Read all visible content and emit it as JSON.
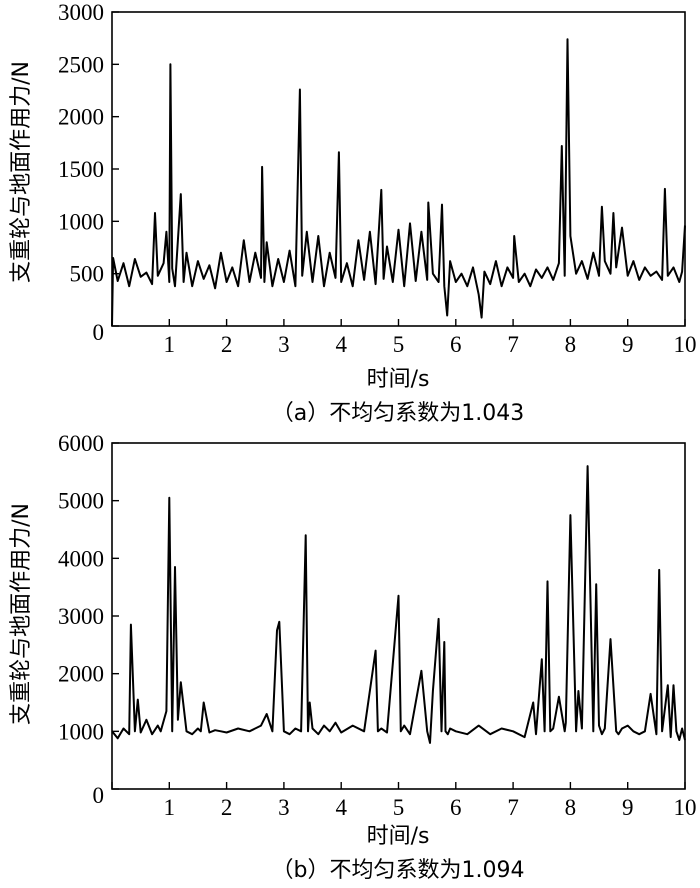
{
  "chart_data": [
    {
      "type": "line",
      "panel": "a",
      "caption": "（a）不均匀系数为1.043",
      "xlabel": "时间/s",
      "ylabel": "支重轮与地面作用力/N",
      "xlim": [
        0,
        10
      ],
      "ylim": [
        0,
        3000
      ],
      "xticks": [
        "0",
        "1",
        "2",
        "3",
        "4",
        "5",
        "6",
        "7",
        "8",
        "9",
        "10"
      ],
      "yticks": [
        "0",
        "500",
        "1000",
        "1500",
        "2000",
        "2500",
        "3000"
      ],
      "grid": false,
      "color": "#000000",
      "x": [
        0,
        0.02,
        0.1,
        0.2,
        0.3,
        0.4,
        0.5,
        0.6,
        0.7,
        0.75,
        0.8,
        0.9,
        0.95,
        1.0,
        1.02,
        1.05,
        1.1,
        1.15,
        1.2,
        1.25,
        1.3,
        1.4,
        1.5,
        1.6,
        1.7,
        1.8,
        1.9,
        2.0,
        2.1,
        2.2,
        2.3,
        2.4,
        2.5,
        2.6,
        2.62,
        2.66,
        2.7,
        2.8,
        2.9,
        3.0,
        3.1,
        3.2,
        3.28,
        3.32,
        3.4,
        3.5,
        3.6,
        3.7,
        3.8,
        3.9,
        3.96,
        4.0,
        4.1,
        4.2,
        4.3,
        4.4,
        4.5,
        4.6,
        4.7,
        4.74,
        4.8,
        4.9,
        5.0,
        5.1,
        5.2,
        5.3,
        5.4,
        5.5,
        5.52,
        5.6,
        5.7,
        5.76,
        5.8,
        5.85,
        5.9,
        6.0,
        6.1,
        6.2,
        6.3,
        6.4,
        6.45,
        6.5,
        6.6,
        6.7,
        6.8,
        6.9,
        7.0,
        7.02,
        7.1,
        7.2,
        7.3,
        7.4,
        7.5,
        7.6,
        7.7,
        7.8,
        7.85,
        7.9,
        7.95,
        8.0,
        8.1,
        8.2,
        8.3,
        8.4,
        8.5,
        8.55,
        8.6,
        8.7,
        8.75,
        8.8,
        8.9,
        9.0,
        9.1,
        9.2,
        9.3,
        9.4,
        9.5,
        9.6,
        9.65,
        9.7,
        9.8,
        9.9,
        9.95,
        10.0
      ],
      "y": [
        0,
        650,
        430,
        600,
        380,
        640,
        470,
        510,
        400,
        1080,
        480,
        600,
        900,
        420,
        2500,
        550,
        380,
        820,
        1260,
        420,
        700,
        380,
        620,
        450,
        580,
        360,
        700,
        420,
        560,
        380,
        820,
        420,
        700,
        460,
        1520,
        420,
        800,
        380,
        640,
        420,
        720,
        380,
        2260,
        480,
        900,
        420,
        860,
        380,
        700,
        460,
        1660,
        420,
        600,
        380,
        820,
        440,
        900,
        400,
        1300,
        450,
        760,
        420,
        920,
        380,
        980,
        430,
        900,
        440,
        1180,
        500,
        420,
        1160,
        380,
        100,
        620,
        420,
        500,
        380,
        560,
        300,
        80,
        520,
        400,
        620,
        380,
        560,
        460,
        860,
        420,
        500,
        380,
        540,
        460,
        560,
        440,
        600,
        1720,
        480,
        2740,
        860,
        500,
        620,
        450,
        700,
        480,
        1140,
        620,
        500,
        1080,
        560,
        940,
        480,
        620,
        440,
        560,
        480,
        520,
        440,
        1310,
        480,
        560,
        420,
        520,
        960
      ]
    },
    {
      "type": "line",
      "panel": "b",
      "caption": "（b）不均匀系数为1.094",
      "xlabel": "时间/s",
      "ylabel": "支重轮与地面作用力/N",
      "xlim": [
        0,
        10
      ],
      "ylim": [
        0,
        6000
      ],
      "xticks": [
        "0",
        "1",
        "2",
        "3",
        "4",
        "5",
        "6",
        "7",
        "8",
        "9",
        "10"
      ],
      "yticks": [
        "0",
        "1000",
        "2000",
        "3000",
        "4000",
        "5000",
        "6000"
      ],
      "grid": false,
      "color": "#000000",
      "x": [
        0,
        0.1,
        0.2,
        0.3,
        0.33,
        0.4,
        0.45,
        0.5,
        0.6,
        0.7,
        0.8,
        0.85,
        0.95,
        1.0,
        1.05,
        1.1,
        1.15,
        1.2,
        1.3,
        1.4,
        1.5,
        1.55,
        1.6,
        1.7,
        1.8,
        1.9,
        2.0,
        2.2,
        2.4,
        2.6,
        2.7,
        2.8,
        2.88,
        2.92,
        2.96,
        3.0,
        3.1,
        3.2,
        3.3,
        3.38,
        3.42,
        3.45,
        3.5,
        3.6,
        3.7,
        3.8,
        3.9,
        4.0,
        4.2,
        4.4,
        4.6,
        4.64,
        4.7,
        4.8,
        5.0,
        5.04,
        5.1,
        5.2,
        5.4,
        5.5,
        5.55,
        5.6,
        5.7,
        5.75,
        5.8,
        5.82,
        5.86,
        5.9,
        6.0,
        6.2,
        6.4,
        6.6,
        6.8,
        7.0,
        7.2,
        7.35,
        7.4,
        7.5,
        7.55,
        7.6,
        7.65,
        7.7,
        7.8,
        7.9,
        7.92,
        8.0,
        8.1,
        8.14,
        8.2,
        8.3,
        8.4,
        8.45,
        8.5,
        8.55,
        8.6,
        8.7,
        8.8,
        8.84,
        8.9,
        9.0,
        9.1,
        9.2,
        9.3,
        9.4,
        9.5,
        9.55,
        9.6,
        9.7,
        9.75,
        9.8,
        9.85,
        9.9,
        9.95,
        10.0
      ],
      "y": [
        1000,
        880,
        1050,
        950,
        2850,
        1000,
        1550,
        980,
        1200,
        950,
        1100,
        1000,
        1350,
        5050,
        1000,
        3850,
        1200,
        1850,
        1000,
        950,
        1050,
        1000,
        1500,
        980,
        1020,
        1000,
        980,
        1050,
        1000,
        1100,
        1300,
        1000,
        2750,
        2900,
        1950,
        1000,
        950,
        1050,
        1000,
        4400,
        1000,
        1500,
        1050,
        950,
        1100,
        1000,
        1150,
        980,
        1100,
        1000,
        2400,
        1000,
        1050,
        980,
        3350,
        1000,
        1100,
        950,
        2050,
        1000,
        800,
        1700,
        2950,
        1000,
        2550,
        1000,
        950,
        1050,
        1000,
        950,
        1100,
        950,
        1050,
        1000,
        900,
        1500,
        950,
        2250,
        1000,
        3600,
        1000,
        1050,
        1600,
        1000,
        1150,
        4750,
        1000,
        1700,
        1050,
        5600,
        1000,
        3550,
        1100,
        950,
        1050,
        2600,
        1000,
        950,
        1050,
        1100,
        1000,
        950,
        1000,
        1650,
        950,
        3800,
        1000,
        1800,
        900,
        1800,
        1000,
        850,
        1050,
        850
      ]
    }
  ]
}
